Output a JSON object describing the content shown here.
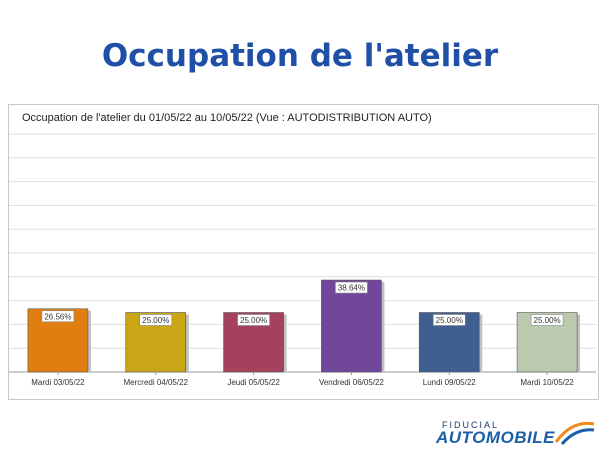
{
  "slide": {
    "title": "Occupation de l'atelier"
  },
  "logo": {
    "line1": "FIDUCIAL",
    "line2": "AUTOMOBILE"
  },
  "chart_data": {
    "type": "bar",
    "title": "Occupation de l'atelier du 01/05/22 au 10/05/22 (Vue : AUTODISTRIBUTION AUTO)",
    "xlabel": "",
    "ylabel": "",
    "ylim": [
      0,
      100
    ],
    "grid": true,
    "categories": [
      "Mardi 03/05/22",
      "Mercredi 04/05/22",
      "Jeudi 05/05/22",
      "Vendredi 06/05/22",
      "Lundi 09/05/22",
      "Mardi 10/05/22"
    ],
    "values": [
      26.56,
      25.0,
      25.0,
      38.64,
      25.0,
      25.0
    ],
    "value_labels": [
      "26.56%",
      "25.00%",
      "25.00%",
      "38.64%",
      "25.00%",
      "25.00%"
    ],
    "colors": [
      "#e07f10",
      "#c9a616",
      "#a4425e",
      "#70479a",
      "#3f5f92",
      "#bccbb0"
    ]
  }
}
